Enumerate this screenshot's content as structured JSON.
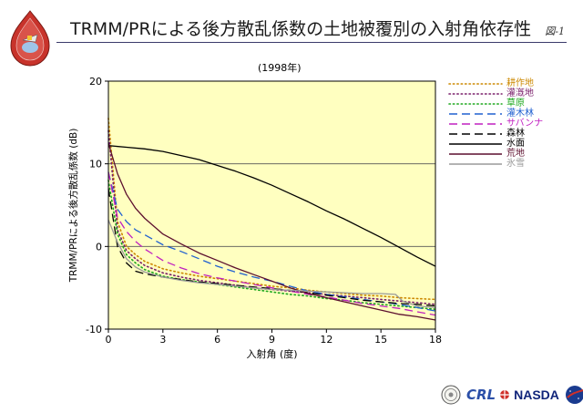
{
  "page": {
    "title": "TRMM/PRによる後方散乱係数の土地被覆別の入射角依存性",
    "figure_number": "図-1"
  },
  "logos": {
    "emblem_icon": "tropical-rainfall-mission-emblem",
    "seal_icon": "round-seal",
    "crl_text": "CRL",
    "nasda_text": "NASDA",
    "nasa_icon": "nasa-meatball"
  },
  "chart_data": {
    "type": "line",
    "title": "(1998年)",
    "xlabel": "入射角 (度)",
    "ylabel": "TRMM/PRによる後方散乱係数 (dB)",
    "xlim": [
      0,
      18
    ],
    "ylim": [
      -10,
      20
    ],
    "xticks": [
      "0",
      "3",
      "6",
      "9",
      "12",
      "15",
      "18"
    ],
    "yticks": [
      "-10",
      "0",
      "10",
      "20"
    ],
    "grid": "horizontal",
    "plot_background": "#ffffc0",
    "legend_position": "right",
    "series": [
      {
        "name": "耕作地",
        "color": "#cc8800",
        "dash": "dotted",
        "x": [
          0,
          0.5,
          1,
          1.5,
          2,
          3,
          4,
          5,
          6,
          7,
          8,
          9,
          10,
          11,
          12,
          13,
          14,
          15,
          16,
          17,
          18
        ],
        "y": [
          15.5,
          3,
          0,
          -1,
          -1.8,
          -2.7,
          -3.2,
          -3.6,
          -3.9,
          -4.2,
          -4.5,
          -4.8,
          -5,
          -5.3,
          -5.5,
          -5.7,
          -5.9,
          -6,
          -6.2,
          -6.3,
          -6.4
        ]
      },
      {
        "name": "灌漑地",
        "color": "#7a1f6b",
        "dash": "dotted",
        "x": [
          0,
          0.5,
          1,
          1.5,
          2,
          3,
          4,
          5,
          6,
          7,
          8,
          9,
          10,
          11,
          12,
          13,
          14,
          15,
          16,
          17,
          18
        ],
        "y": [
          14,
          2,
          -0.5,
          -1.5,
          -2.3,
          -3.2,
          -3.7,
          -4.1,
          -4.4,
          -4.7,
          -5,
          -5.2,
          -5.4,
          -5.6,
          -5.8,
          -6,
          -6.2,
          -6.4,
          -6.6,
          -6.8,
          -7
        ]
      },
      {
        "name": "草原",
        "color": "#1ea81e",
        "dash": "dotted",
        "x": [
          0,
          0.5,
          1,
          1.5,
          2,
          3,
          4,
          5,
          6,
          7,
          8,
          9,
          10,
          11,
          12,
          13,
          14,
          15,
          16,
          17,
          18
        ],
        "y": [
          8,
          1.5,
          -1,
          -2,
          -2.8,
          -3.6,
          -4,
          -4.3,
          -4.6,
          -4.9,
          -5.2,
          -5.5,
          -5.8,
          -6,
          -6.3,
          -6.5,
          -6.8,
          -7,
          -7.2,
          -7.4,
          -7.6
        ]
      },
      {
        "name": "灌木林",
        "color": "#2060d0",
        "dash": "dashed",
        "x": [
          0,
          0.5,
          1,
          1.5,
          2,
          3,
          4,
          5,
          6,
          7,
          8,
          9,
          10,
          11,
          12,
          13,
          14,
          15,
          16,
          17,
          18
        ],
        "y": [
          9,
          4.5,
          3,
          2,
          1.4,
          0.2,
          -0.6,
          -1.5,
          -2.4,
          -3.1,
          -3.7,
          -4.2,
          -4.8,
          -5.4,
          -5.8,
          -6.1,
          -6.4,
          -6.7,
          -7,
          -7.4,
          -7.8
        ]
      },
      {
        "name": "サバンナ",
        "color": "#c020c0",
        "dash": "dashed",
        "x": [
          0,
          0.5,
          1,
          1.5,
          2,
          3,
          4,
          5,
          6,
          7,
          8,
          9,
          10,
          11,
          12,
          13,
          14,
          15,
          16,
          17,
          18
        ],
        "y": [
          9,
          3.5,
          1.8,
          0.6,
          -0.3,
          -1.7,
          -2.6,
          -3.3,
          -3.8,
          -4.2,
          -4.6,
          -5,
          -5.4,
          -5.8,
          -6.1,
          -6.5,
          -6.9,
          -7.2,
          -7.5,
          -7.9,
          -8.3
        ]
      },
      {
        "name": "森林",
        "color": "#000000",
        "dash": "dashed",
        "x": [
          0,
          0.5,
          1,
          1.5,
          2,
          3,
          4,
          5,
          6,
          7,
          8,
          9,
          10,
          11,
          12,
          13,
          14,
          15,
          16,
          17,
          18
        ],
        "y": [
          7,
          0,
          -2,
          -3,
          -3.3,
          -3.7,
          -4,
          -4.3,
          -4.5,
          -4.7,
          -4.9,
          -5.1,
          -5.3,
          -5.6,
          -5.9,
          -6.2,
          -6.5,
          -6.7,
          -6.9,
          -7,
          -7.2
        ]
      },
      {
        "name": "水面",
        "color": "#000000",
        "dash": "solid",
        "x": [
          0,
          1,
          2,
          3,
          4,
          5,
          6,
          7,
          8,
          9,
          10,
          11,
          12,
          13,
          14,
          15,
          16,
          17,
          18
        ],
        "y": [
          12.2,
          12,
          11.8,
          11.5,
          11,
          10.5,
          9.8,
          9.1,
          8.3,
          7.4,
          6.4,
          5.4,
          4.3,
          3.3,
          2.2,
          1.1,
          -0.1,
          -1.3,
          -2.4
        ]
      },
      {
        "name": "荒地",
        "color": "#5c0f2e",
        "dash": "solid",
        "x": [
          0,
          0.5,
          1,
          1.5,
          2,
          3,
          4,
          5,
          6,
          7,
          8,
          9,
          10,
          11,
          12,
          13,
          14,
          15,
          16,
          17,
          18
        ],
        "y": [
          12.5,
          8.8,
          6.3,
          4.6,
          3.4,
          1.5,
          0.3,
          -0.8,
          -1.7,
          -2.6,
          -3.4,
          -4.2,
          -5,
          -5.7,
          -6.2,
          -6.7,
          -7.2,
          -7.7,
          -8.2,
          -8.5,
          -8.9
        ]
      },
      {
        "name": "氷雪",
        "color": "#9a9a9a",
        "dash": "solid",
        "x": [
          0,
          0.5,
          1,
          1.5,
          2,
          3,
          4,
          5,
          6,
          7,
          8,
          9,
          10,
          11,
          12,
          13,
          14,
          15,
          15.8,
          16.2,
          17,
          18
        ],
        "y": [
          3.2,
          0.5,
          -1.5,
          -2.5,
          -3.1,
          -3.7,
          -4.1,
          -4.4,
          -4.6,
          -4.8,
          -5,
          -5.2,
          -5.3,
          -5.4,
          -5.5,
          -5.6,
          -5.7,
          -5.7,
          -5.8,
          -6.6,
          -7.2,
          -7.4
        ]
      }
    ]
  }
}
